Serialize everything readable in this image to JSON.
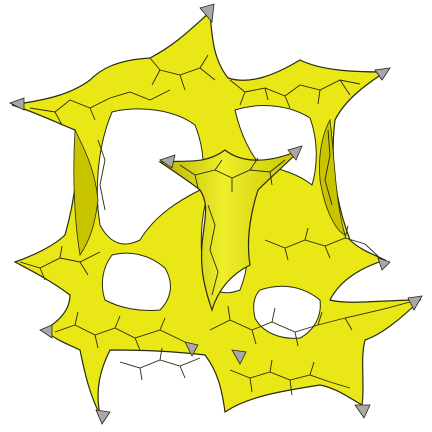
{
  "figure": {
    "kind": "rendered 3D periodic minimal surface lattice",
    "colors": {
      "background": "#ffffff",
      "surface": "#e9e816",
      "surface_light": "#f2f238",
      "surface_shade": "#b8b200",
      "cut_face": "#a8a8a8",
      "edge_lines": "#2a2a10"
    }
  }
}
